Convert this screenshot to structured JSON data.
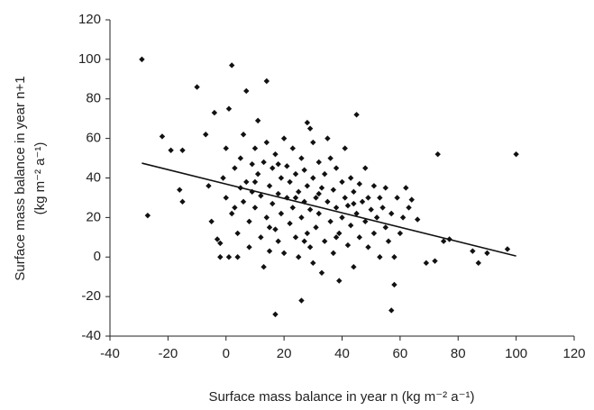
{
  "chart_data": {
    "type": "scatter",
    "x_label": "Surface mass balance in year n (kg m⁻² a⁻¹)",
    "y_label": [
      "Surface mass balance in year n+1",
      "(kg m⁻² a⁻¹)"
    ],
    "xlim": [
      -40,
      120
    ],
    "xticks": [
      -40,
      -20,
      0,
      20,
      40,
      60,
      80,
      100,
      120
    ],
    "ylim": [
      -40,
      120
    ],
    "yticks": [
      -40,
      -20,
      0,
      20,
      40,
      60,
      80,
      100,
      120
    ],
    "color": "#111111",
    "x": [
      -29,
      -27,
      -22,
      -19,
      -16,
      -15,
      -15,
      -10,
      -7,
      -6,
      -5,
      -4,
      -3,
      -2,
      -2,
      0,
      1,
      2,
      1,
      4,
      7,
      9,
      11,
      14,
      13,
      17,
      26,
      28,
      29,
      45,
      57,
      58,
      69,
      72,
      73,
      75,
      77,
      85,
      87,
      90,
      97,
      100,
      62,
      64,
      66,
      -1,
      0,
      2,
      3,
      4,
      5,
      6,
      6,
      7,
      8,
      8,
      9,
      10,
      10,
      11,
      12,
      12,
      13,
      14,
      14,
      15,
      15,
      16,
      16,
      17,
      17,
      18,
      18,
      19,
      19,
      20,
      20,
      21,
      21,
      22,
      22,
      23,
      23,
      24,
      24,
      25,
      25,
      26,
      26,
      27,
      27,
      28,
      28,
      29,
      29,
      30,
      30,
      30,
      31,
      31,
      32,
      32,
      33,
      33,
      34,
      34,
      35,
      35,
      36,
      36,
      37,
      37,
      38,
      38,
      39,
      39,
      40,
      40,
      41,
      41,
      42,
      42,
      43,
      43,
      44,
      44,
      45,
      46,
      46,
      47,
      48,
      48,
      49,
      49,
      50,
      51,
      51,
      52,
      53,
      53,
      54,
      55,
      55,
      56,
      57,
      58,
      59,
      60,
      61,
      63,
      5,
      3,
      18,
      24,
      32,
      44,
      38,
      27,
      15,
      10
    ],
    "values": [
      100,
      21,
      61,
      54,
      34,
      28,
      54,
      86,
      62,
      36,
      18,
      73,
      9,
      7,
      0,
      55,
      75,
      97,
      0,
      0,
      84,
      47,
      69,
      89,
      -5,
      -29,
      -22,
      68,
      65,
      72,
      -27,
      -14,
      -3,
      -2,
      52,
      8,
      9,
      3,
      -3,
      2,
      4,
      52,
      35,
      29,
      19,
      40,
      30,
      22,
      45,
      12,
      50,
      28,
      62,
      38,
      18,
      5,
      33,
      55,
      25,
      42,
      10,
      31,
      48,
      20,
      58,
      3,
      36,
      45,
      27,
      14,
      52,
      32,
      8,
      40,
      22,
      60,
      2,
      30,
      46,
      17,
      38,
      55,
      25,
      10,
      42,
      33,
      0,
      50,
      20,
      28,
      44,
      12,
      36,
      5,
      24,
      58,
      40,
      -3,
      30,
      15,
      48,
      22,
      35,
      -8,
      8,
      42,
      28,
      60,
      18,
      50,
      2,
      34,
      25,
      45,
      -12,
      12,
      38,
      20,
      30,
      55,
      6,
      26,
      40,
      16,
      33,
      -5,
      22,
      37,
      10,
      28,
      18,
      45,
      30,
      5,
      24,
      36,
      12,
      20,
      30,
      0,
      25,
      15,
      35,
      8,
      22,
      0,
      30,
      12,
      20,
      25,
      35,
      25,
      47,
      30,
      32,
      27,
      10,
      8,
      15,
      38
    ],
    "trendline": {
      "x": [
        -29,
        100
      ],
      "y": [
        47.5,
        0.5
      ]
    }
  }
}
